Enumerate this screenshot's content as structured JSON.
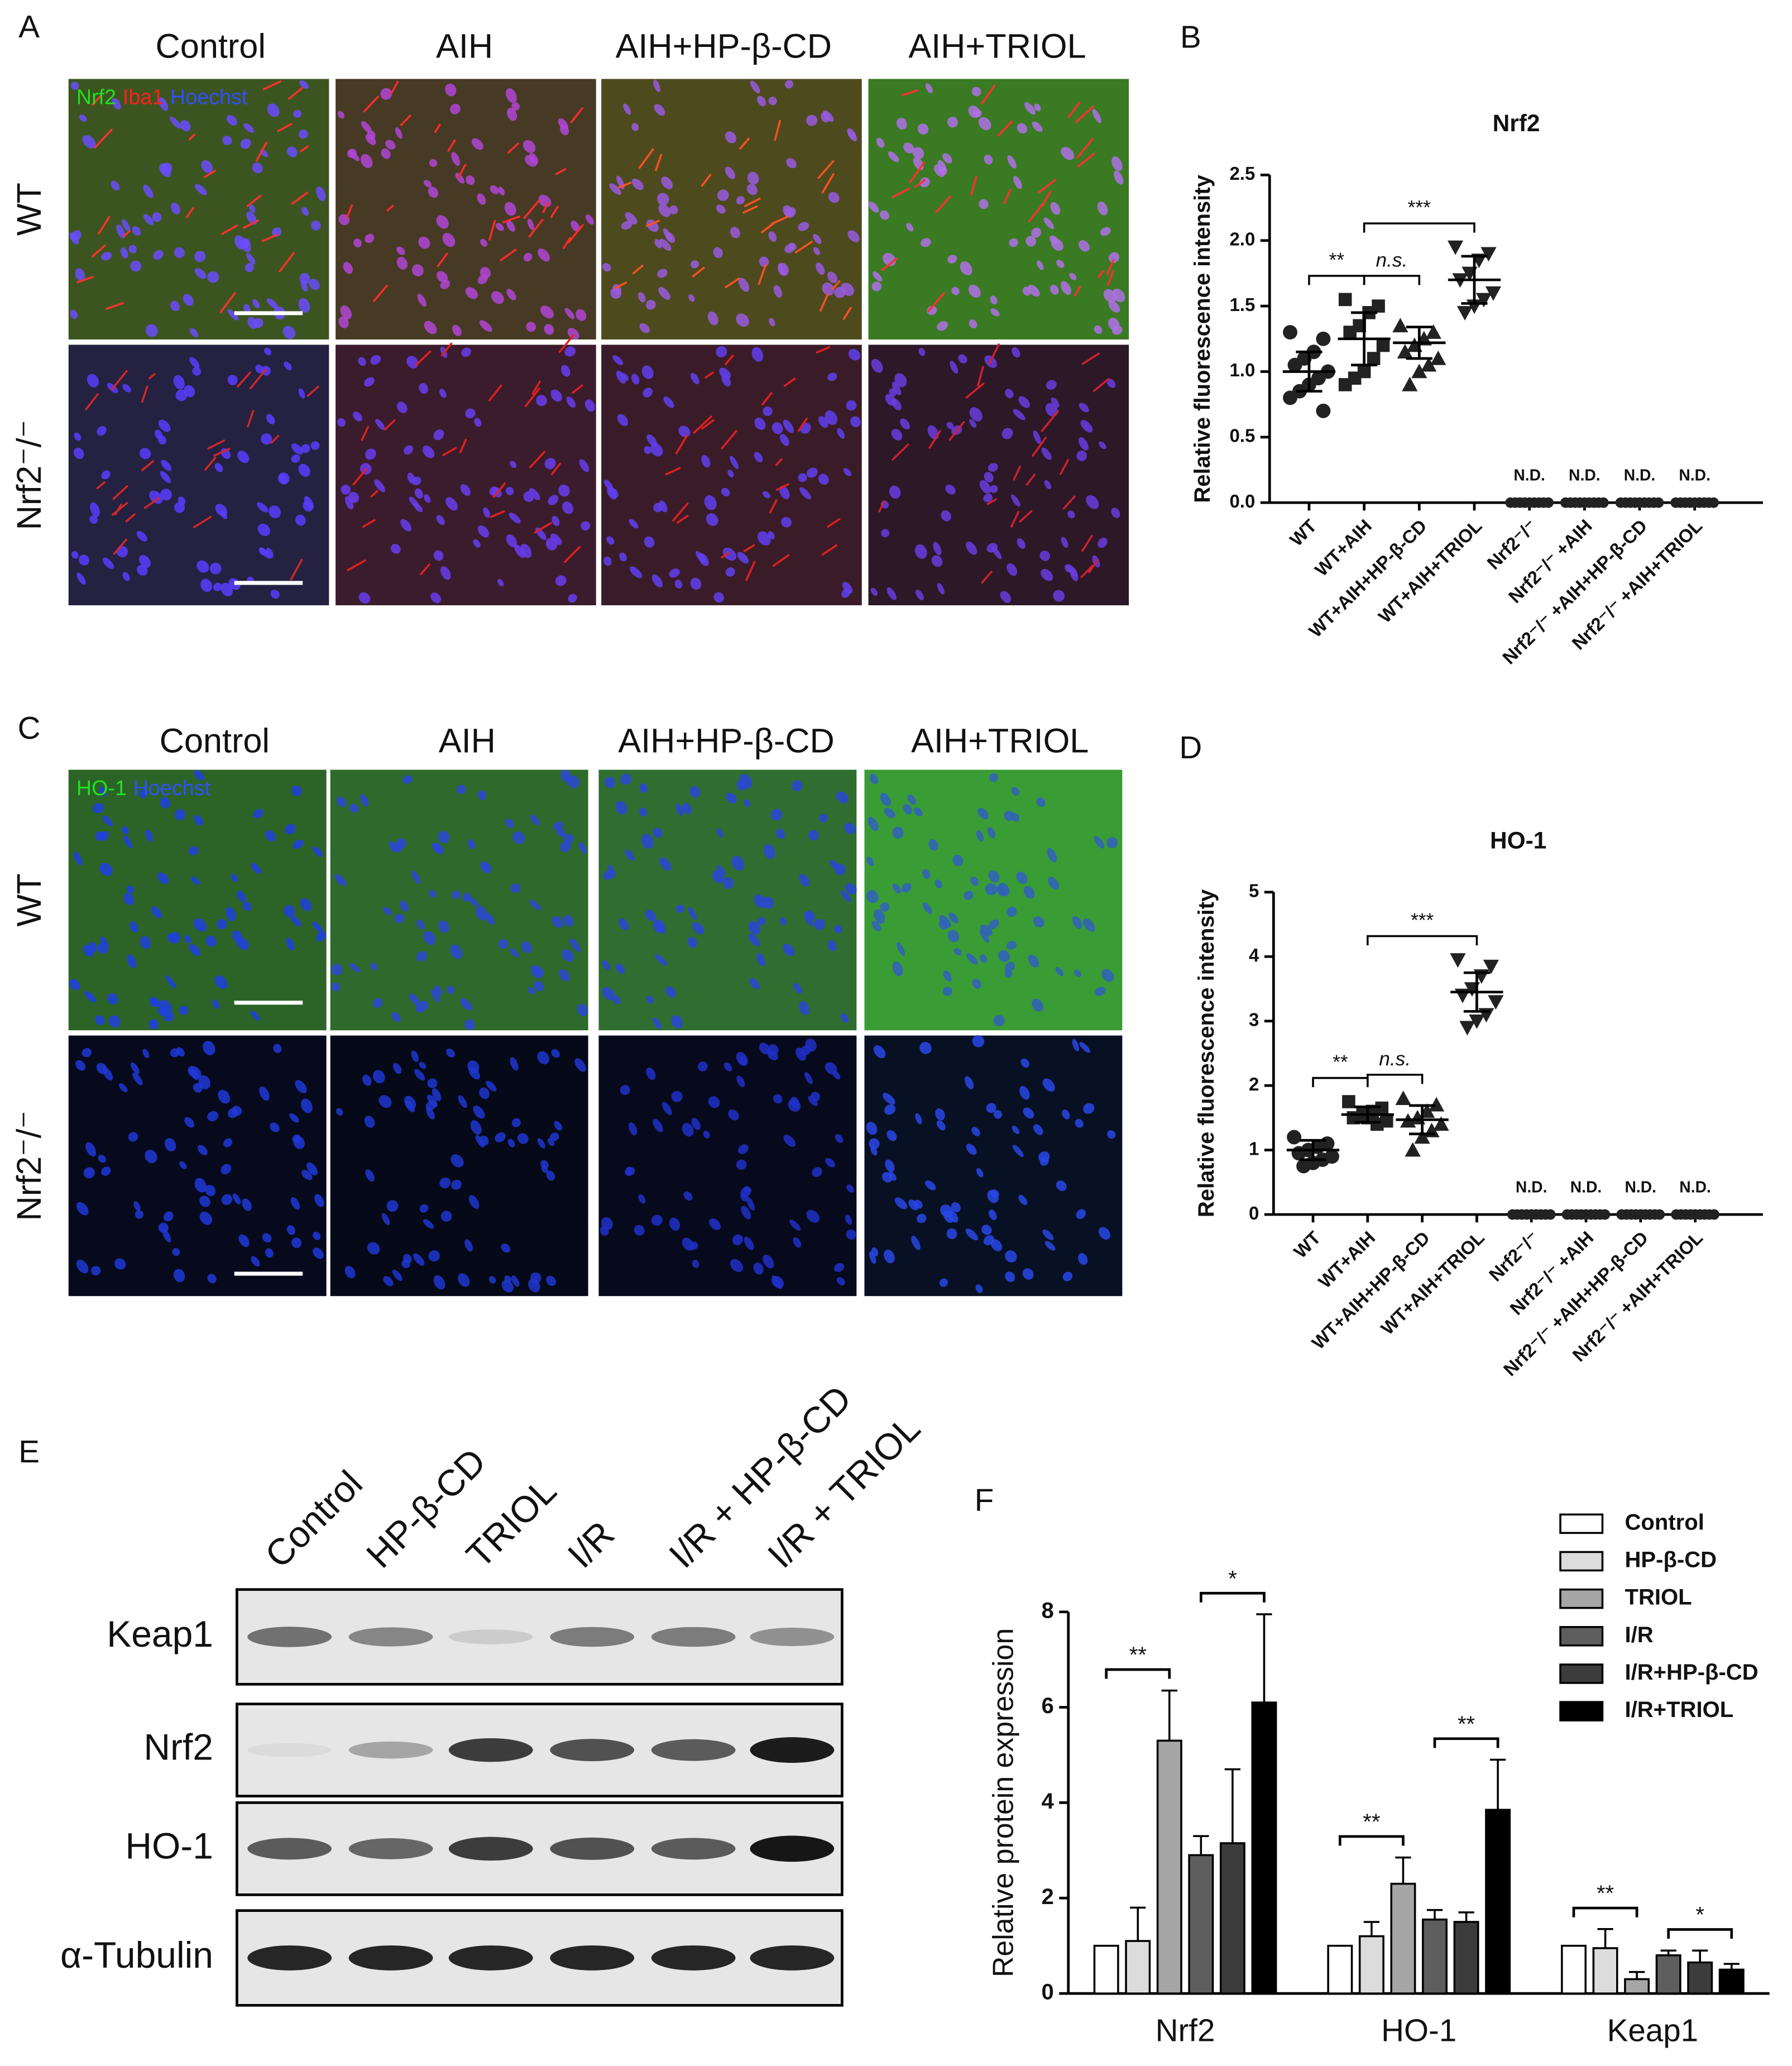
{
  "panel_labels": [
    "A",
    "B",
    "C",
    "D",
    "E",
    "F"
  ],
  "panel_a": {
    "columns": [
      "Control",
      "AIH",
      "AIH+HP-β-CD",
      "AIH+TRIOL"
    ],
    "rows": [
      "WT",
      "Nrf2⁻/⁻"
    ],
    "channels": [
      "Nrf2",
      "Iba1",
      "Hoechst"
    ]
  },
  "panel_c": {
    "columns": [
      "Control",
      "AIH",
      "AIH+HP-β-CD",
      "AIH+TRIOL"
    ],
    "rows": [
      "WT",
      "Nrf2⁻/⁻"
    ],
    "channels": [
      "HO-1",
      "Hoechst"
    ]
  },
  "panel_e": {
    "lanes": [
      "Control",
      "HP-β-CD",
      "TRIOL",
      "I/R",
      "I/R + HP-β-CD",
      "I/R + TRIOL"
    ],
    "rows": [
      "Keap1",
      "Nrf2",
      "HO-1",
      "α-Tubulin"
    ]
  },
  "chart_data": [
    {
      "type": "dot-plot",
      "title": "Nrf2",
      "y_label": "Relative fluorescence intensity",
      "categories": [
        "WT",
        "WT+AIH",
        "WT+AIH+HP-β-CD",
        "WT+AIH+TRIOL",
        "Nrf2⁻/⁻",
        "Nrf2⁻/⁻ +AIH",
        "Nrf2⁻/⁻ +AIH+HP-β-CD",
        "Nrf2⁻/⁻ +AIH+TRIOL"
      ],
      "points": [
        [
          1.3,
          1.25,
          1.15,
          1.1,
          1.05,
          1.0,
          0.95,
          0.9,
          0.85,
          0.8,
          0.7
        ],
        [
          1.55,
          1.5,
          1.45,
          1.35,
          1.3,
          1.2,
          1.1,
          1.0,
          0.95,
          0.9
        ],
        [
          1.35,
          1.3,
          1.25,
          1.2,
          1.15,
          1.1,
          1.05,
          1.0,
          0.9
        ],
        [
          1.95,
          1.9,
          1.85,
          1.75,
          1.7,
          1.6,
          1.55,
          1.5,
          1.45
        ],
        [
          0,
          0,
          0,
          0,
          0,
          0,
          0,
          0,
          0
        ],
        [
          0,
          0,
          0,
          0,
          0,
          0,
          0,
          0,
          0
        ],
        [
          0,
          0,
          0,
          0,
          0,
          0,
          0,
          0,
          0
        ],
        [
          0,
          0,
          0,
          0,
          0,
          0,
          0,
          0,
          0
        ]
      ],
      "means": [
        1.0,
        1.25,
        1.22,
        1.7,
        null,
        null,
        null,
        null
      ],
      "sds": [
        0.15,
        0.2,
        0.12,
        0.18,
        null,
        null,
        null,
        null
      ],
      "group_notes": [
        null,
        null,
        null,
        null,
        "N.D.",
        "N.D.",
        "N.D.",
        "N.D."
      ],
      "significance": [
        {
          "from": 0,
          "to": 1,
          "label": "**"
        },
        {
          "from": 1,
          "to": 2,
          "label": "n.s."
        },
        {
          "from": 1,
          "to": 3,
          "label": "***"
        }
      ],
      "ylim": [
        0,
        2.5
      ],
      "yticks": [
        {
          "value": 0,
          "label": "0.0"
        },
        0.5,
        {
          "value": 1,
          "label": "1.0"
        },
        1.5,
        {
          "value": 2,
          "label": "2.0"
        },
        2.5
      ],
      "color": "#222222"
    },
    {
      "type": "dot-plot",
      "title": "HO-1",
      "y_label": "Relative fluorescence intensity",
      "categories": [
        "WT",
        "WT+AIH",
        "WT+AIH+HP-β-CD",
        "WT+AIH+TRIOL",
        "Nrf2⁻/⁻",
        "Nrf2⁻/⁻ +AIH",
        "Nrf2⁻/⁻ +AIH+HP-β-CD",
        "Nrf2⁻/⁻ +AIH+TRIOL"
      ],
      "points": [
        [
          1.2,
          1.1,
          1.05,
          1.0,
          0.95,
          0.9,
          0.85,
          0.8,
          0.75
        ],
        [
          1.75,
          1.65,
          1.6,
          1.55,
          1.5,
          1.45,
          1.4,
          1.5
        ],
        [
          1.8,
          1.7,
          1.6,
          1.5,
          1.45,
          1.4,
          1.3,
          1.2,
          1.0
        ],
        [
          3.95,
          3.85,
          3.7,
          3.5,
          3.4,
          3.3,
          3.1,
          3.0,
          2.9
        ],
        [
          0,
          0,
          0,
          0,
          0,
          0,
          0,
          0,
          0
        ],
        [
          0,
          0,
          0,
          0,
          0,
          0,
          0,
          0,
          0
        ],
        [
          0,
          0,
          0,
          0,
          0,
          0,
          0,
          0,
          0
        ],
        [
          0,
          0,
          0,
          0,
          0,
          0,
          0,
          0,
          0
        ]
      ],
      "means": [
        1.0,
        1.55,
        1.47,
        3.45,
        null,
        null,
        null,
        null
      ],
      "sds": [
        0.15,
        0.12,
        0.22,
        0.3,
        null,
        null,
        null,
        null
      ],
      "group_notes": [
        null,
        null,
        null,
        null,
        "N.D.",
        "N.D.",
        "N.D.",
        "N.D."
      ],
      "significance": [
        {
          "from": 0,
          "to": 1,
          "label": "**"
        },
        {
          "from": 1,
          "to": 2,
          "label": "n.s."
        },
        {
          "from": 1,
          "to": 3,
          "label": "***"
        }
      ],
      "ylim": [
        0,
        5
      ],
      "yticks": [
        0,
        1,
        2,
        3,
        4,
        5
      ],
      "color": "#222222"
    },
    {
      "type": "bar",
      "y_label": "Relative protein expression",
      "categories": [
        "Nrf2",
        "HO-1",
        "Keap1"
      ],
      "series": [
        {
          "name": "Control",
          "color": "#ffffff",
          "values": [
            1.0,
            1.0,
            1.0
          ],
          "errors": [
            0,
            0,
            0
          ]
        },
        {
          "name": "HP-β-CD",
          "color": "#dcdcdc",
          "values": [
            1.1,
            1.2,
            0.95
          ],
          "errors": [
            0.7,
            0.3,
            0.4
          ]
        },
        {
          "name": "TRIOL",
          "color": "#a6a6a6",
          "values": [
            5.3,
            2.3,
            0.3
          ],
          "errors": [
            1.05,
            0.55,
            0.15
          ]
        },
        {
          "name": "I/R",
          "color": "#5e5e5e",
          "values": [
            2.9,
            1.55,
            0.8
          ],
          "errors": [
            0.4,
            0.2,
            0.1
          ]
        },
        {
          "name": "I/R+HP-β-CD",
          "color": "#3c3c3c",
          "values": [
            3.15,
            1.5,
            0.65
          ],
          "errors": [
            1.55,
            0.2,
            0.25
          ]
        },
        {
          "name": "I/R+TRIOL",
          "color": "#000000",
          "values": [
            6.1,
            3.85,
            0.5
          ],
          "errors": [
            1.85,
            1.05,
            0.12
          ]
        }
      ],
      "significance": [
        {
          "category": 0,
          "from": 0,
          "to": 2,
          "label": "**"
        },
        {
          "category": 0,
          "from": 3,
          "to": 5,
          "label": "*"
        },
        {
          "category": 1,
          "from": 0,
          "to": 2,
          "label": "**"
        },
        {
          "category": 1,
          "from": 3,
          "to": 5,
          "label": "**"
        },
        {
          "category": 2,
          "from": 0,
          "to": 2,
          "label": "**"
        },
        {
          "category": 2,
          "from": 3,
          "to": 5,
          "label": "*"
        }
      ],
      "ylim": [
        0,
        8
      ],
      "yticks": [
        0,
        2,
        4,
        6,
        8
      ]
    }
  ]
}
